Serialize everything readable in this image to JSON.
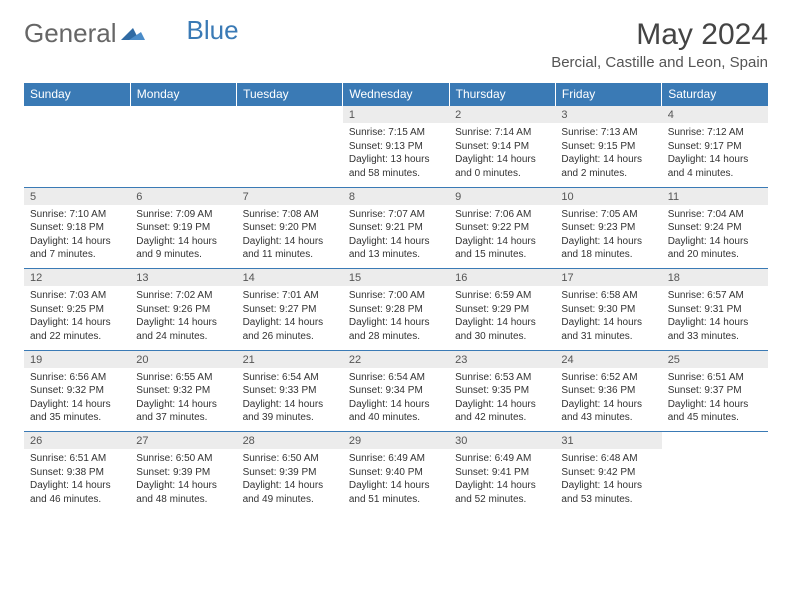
{
  "logo": {
    "text1": "General",
    "text2": "Blue"
  },
  "title": "May 2024",
  "location": "Bercial, Castille and Leon, Spain",
  "colors": {
    "header_bg": "#3a7ab5",
    "header_text": "#ffffff",
    "daynum_bg": "#ececec",
    "border": "#3a7ab5",
    "text": "#333333"
  },
  "weekdays": [
    "Sunday",
    "Monday",
    "Tuesday",
    "Wednesday",
    "Thursday",
    "Friday",
    "Saturday"
  ],
  "weeks": [
    [
      null,
      null,
      null,
      {
        "n": "1",
        "sr": "7:15 AM",
        "ss": "9:13 PM",
        "dl": "13 hours and 58 minutes."
      },
      {
        "n": "2",
        "sr": "7:14 AM",
        "ss": "9:14 PM",
        "dl": "14 hours and 0 minutes."
      },
      {
        "n": "3",
        "sr": "7:13 AM",
        "ss": "9:15 PM",
        "dl": "14 hours and 2 minutes."
      },
      {
        "n": "4",
        "sr": "7:12 AM",
        "ss": "9:17 PM",
        "dl": "14 hours and 4 minutes."
      }
    ],
    [
      {
        "n": "5",
        "sr": "7:10 AM",
        "ss": "9:18 PM",
        "dl": "14 hours and 7 minutes."
      },
      {
        "n": "6",
        "sr": "7:09 AM",
        "ss": "9:19 PM",
        "dl": "14 hours and 9 minutes."
      },
      {
        "n": "7",
        "sr": "7:08 AM",
        "ss": "9:20 PM",
        "dl": "14 hours and 11 minutes."
      },
      {
        "n": "8",
        "sr": "7:07 AM",
        "ss": "9:21 PM",
        "dl": "14 hours and 13 minutes."
      },
      {
        "n": "9",
        "sr": "7:06 AM",
        "ss": "9:22 PM",
        "dl": "14 hours and 15 minutes."
      },
      {
        "n": "10",
        "sr": "7:05 AM",
        "ss": "9:23 PM",
        "dl": "14 hours and 18 minutes."
      },
      {
        "n": "11",
        "sr": "7:04 AM",
        "ss": "9:24 PM",
        "dl": "14 hours and 20 minutes."
      }
    ],
    [
      {
        "n": "12",
        "sr": "7:03 AM",
        "ss": "9:25 PM",
        "dl": "14 hours and 22 minutes."
      },
      {
        "n": "13",
        "sr": "7:02 AM",
        "ss": "9:26 PM",
        "dl": "14 hours and 24 minutes."
      },
      {
        "n": "14",
        "sr": "7:01 AM",
        "ss": "9:27 PM",
        "dl": "14 hours and 26 minutes."
      },
      {
        "n": "15",
        "sr": "7:00 AM",
        "ss": "9:28 PM",
        "dl": "14 hours and 28 minutes."
      },
      {
        "n": "16",
        "sr": "6:59 AM",
        "ss": "9:29 PM",
        "dl": "14 hours and 30 minutes."
      },
      {
        "n": "17",
        "sr": "6:58 AM",
        "ss": "9:30 PM",
        "dl": "14 hours and 31 minutes."
      },
      {
        "n": "18",
        "sr": "6:57 AM",
        "ss": "9:31 PM",
        "dl": "14 hours and 33 minutes."
      }
    ],
    [
      {
        "n": "19",
        "sr": "6:56 AM",
        "ss": "9:32 PM",
        "dl": "14 hours and 35 minutes."
      },
      {
        "n": "20",
        "sr": "6:55 AM",
        "ss": "9:32 PM",
        "dl": "14 hours and 37 minutes."
      },
      {
        "n": "21",
        "sr": "6:54 AM",
        "ss": "9:33 PM",
        "dl": "14 hours and 39 minutes."
      },
      {
        "n": "22",
        "sr": "6:54 AM",
        "ss": "9:34 PM",
        "dl": "14 hours and 40 minutes."
      },
      {
        "n": "23",
        "sr": "6:53 AM",
        "ss": "9:35 PM",
        "dl": "14 hours and 42 minutes."
      },
      {
        "n": "24",
        "sr": "6:52 AM",
        "ss": "9:36 PM",
        "dl": "14 hours and 43 minutes."
      },
      {
        "n": "25",
        "sr": "6:51 AM",
        "ss": "9:37 PM",
        "dl": "14 hours and 45 minutes."
      }
    ],
    [
      {
        "n": "26",
        "sr": "6:51 AM",
        "ss": "9:38 PM",
        "dl": "14 hours and 46 minutes."
      },
      {
        "n": "27",
        "sr": "6:50 AM",
        "ss": "9:39 PM",
        "dl": "14 hours and 48 minutes."
      },
      {
        "n": "28",
        "sr": "6:50 AM",
        "ss": "9:39 PM",
        "dl": "14 hours and 49 minutes."
      },
      {
        "n": "29",
        "sr": "6:49 AM",
        "ss": "9:40 PM",
        "dl": "14 hours and 51 minutes."
      },
      {
        "n": "30",
        "sr": "6:49 AM",
        "ss": "9:41 PM",
        "dl": "14 hours and 52 minutes."
      },
      {
        "n": "31",
        "sr": "6:48 AM",
        "ss": "9:42 PM",
        "dl": "14 hours and 53 minutes."
      },
      null
    ]
  ],
  "labels": {
    "sunrise": "Sunrise:",
    "sunset": "Sunset:",
    "daylight": "Daylight:"
  }
}
